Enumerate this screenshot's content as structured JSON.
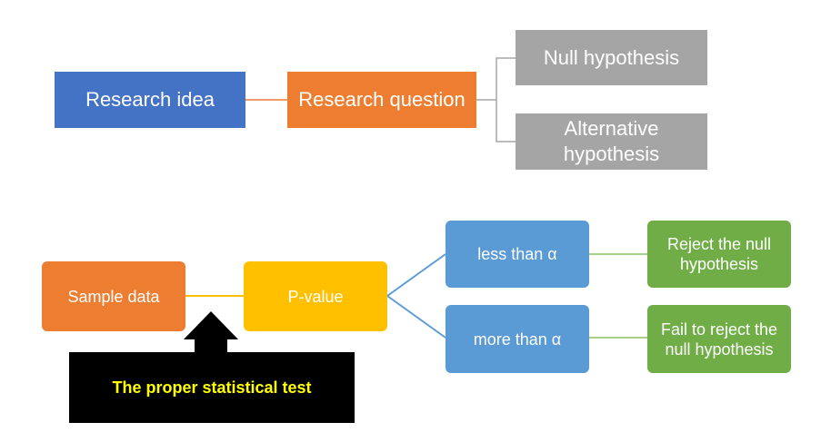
{
  "top": {
    "research_idea": "Research idea",
    "research_question": "Research question",
    "null_hypothesis": "Null hypothesis",
    "alternative_hypothesis_line1": "Alternative",
    "alternative_hypothesis_line2": "hypothesis"
  },
  "bottom": {
    "sample_data": "Sample data",
    "p_value": "P-value",
    "less_than": "less than α",
    "more_than": "more than α",
    "reject_line1": "Reject the null",
    "reject_line2": "hypothesis",
    "fail_line1": "Fail to reject the",
    "fail_line2": "null hypothesis",
    "test_label": "The proper statistical test"
  },
  "colors": {
    "blue": "#4472c4",
    "orange": "#ed7d31",
    "gray": "#a5a5a5",
    "yellow": "#ffc000",
    "light_blue": "#5b9bd5",
    "green": "#70ad47",
    "black": "#000000",
    "callout_text": "#ffff00"
  }
}
